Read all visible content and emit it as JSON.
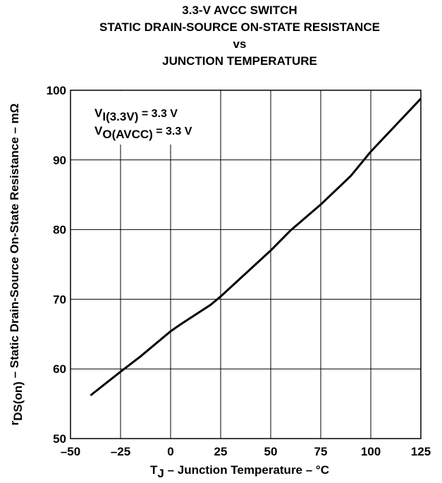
{
  "chart_data": {
    "type": "line",
    "title": [
      "3.3-V AVCC SWITCH",
      "STATIC DRAIN-SOURCE ON-STATE RESISTANCE",
      "vs",
      "JUNCTION TEMPERATURE"
    ],
    "x_label": {
      "symbol": "T",
      "subscript": "J",
      "text": " – Junction Temperature – °C"
    },
    "y_label": {
      "symbol": "r",
      "subscript": "DS(on)",
      "text": " – Static Drain-Source On-State Resistance – mΩ"
    },
    "annotations": [
      {
        "symbol": "V",
        "subscript": "I(3.3V)",
        "text": " = 3.3 V"
      },
      {
        "symbol": "V",
        "subscript": "O(AVCC)",
        "text": " = 3.3 V"
      }
    ],
    "x": [
      -40,
      -25,
      -15,
      0,
      5,
      20,
      25,
      50,
      60,
      75,
      90,
      100,
      125
    ],
    "series": [
      {
        "name": null,
        "color": "#000000",
        "values": [
          56.2,
          59.6,
          61.8,
          65.4,
          66.4,
          69.2,
          70.4,
          77.0,
          79.9,
          83.6,
          87.7,
          91.2,
          98.8
        ]
      }
    ],
    "xlim": [
      -50,
      125
    ],
    "xticks": [
      {
        "value": -50,
        "label": "–50"
      },
      {
        "value": -25,
        "label": "–25"
      },
      0,
      25,
      50,
      75,
      100,
      125
    ],
    "ylim": [
      50,
      100
    ],
    "yticks": [
      50,
      60,
      70,
      80,
      90,
      100
    ],
    "grid": true
  }
}
